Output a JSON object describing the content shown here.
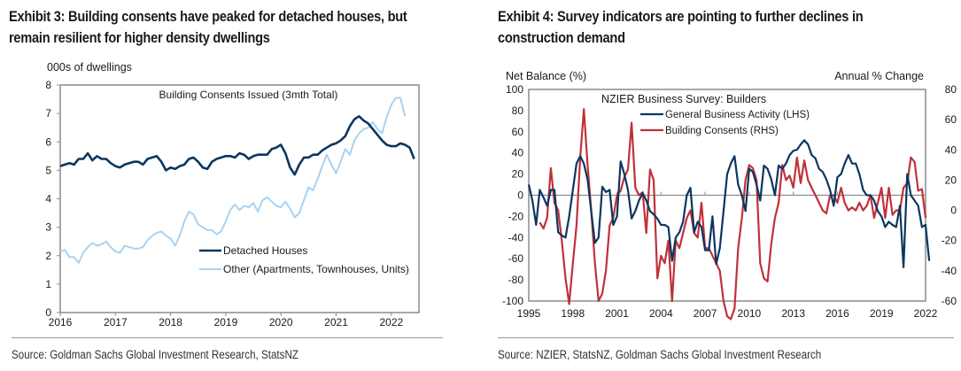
{
  "exhibit3": {
    "title_line1": "Exhibit 3: Building consents have peaked for detached houses, but",
    "title_line2": "remain resilient for higher density dwellings",
    "source": "Source: Goldman Sachs Global Investment Research, StatsNZ"
  },
  "exhibit4": {
    "title_line1": "Exhibit 4: Survey indicators are pointing to further declines in",
    "title_line2": "construction demand",
    "source": "Source: NZIER, StatsNZ, Goldman Sachs Global Investment Research"
  },
  "colors": {
    "dark_navy": "#0b3660",
    "light_blue": "#a9d2f0",
    "red": "#c0313a",
    "axis": "#8c8c8c"
  },
  "chart_data": [
    {
      "type": "line",
      "title": "Building Consents Issued (3mth Total)",
      "ylabel": "000s of dwellings",
      "xlabel": "",
      "xlim": [
        2016,
        2022.5
      ],
      "ylim": [
        0,
        8
      ],
      "yticks": [
        0,
        1,
        2,
        3,
        4,
        5,
        6,
        7,
        8
      ],
      "xticks": [
        "2016",
        "2017",
        "2018",
        "2019",
        "2020",
        "2021",
        "2022"
      ],
      "grid": false,
      "legend_position": "bottom-center",
      "x_start": 2016,
      "x_step": 0.0833,
      "series": [
        {
          "name": "Detached Houses",
          "color": "#0b3660",
          "values": [
            5.15,
            5.2,
            5.25,
            5.2,
            5.4,
            5.4,
            5.6,
            5.35,
            5.5,
            5.4,
            5.4,
            5.25,
            5.15,
            5.1,
            5.2,
            5.25,
            5.3,
            5.3,
            5.2,
            5.4,
            5.45,
            5.5,
            5.3,
            5.0,
            5.1,
            5.05,
            5.15,
            5.2,
            5.4,
            5.45,
            5.3,
            5.1,
            5.05,
            5.3,
            5.4,
            5.45,
            5.5,
            5.5,
            5.45,
            5.6,
            5.55,
            5.4,
            5.5,
            5.55,
            5.55,
            5.55,
            5.75,
            5.8,
            5.9,
            5.6,
            5.1,
            4.85,
            5.2,
            5.45,
            5.45,
            5.55,
            5.55,
            5.7,
            5.8,
            5.9,
            5.95,
            6.05,
            6.2,
            6.55,
            6.8,
            6.9,
            6.75,
            6.65,
            6.45,
            6.25,
            6.05,
            5.9,
            5.85,
            5.85,
            5.95,
            5.9,
            5.8,
            5.4
          ]
        },
        {
          "name": "Other (Apartments, Townhouses, Units)",
          "color": "#a9d2f0",
          "values": [
            2.15,
            2.2,
            1.95,
            1.95,
            1.75,
            2.1,
            2.3,
            2.45,
            2.35,
            2.4,
            2.5,
            2.3,
            2.15,
            2.1,
            2.35,
            2.3,
            2.25,
            2.25,
            2.3,
            2.55,
            2.7,
            2.8,
            2.85,
            2.7,
            2.6,
            2.35,
            2.7,
            3.2,
            3.55,
            3.45,
            3.1,
            3.0,
            2.9,
            2.9,
            2.75,
            2.85,
            3.2,
            3.6,
            3.8,
            3.6,
            3.75,
            3.7,
            3.85,
            3.55,
            3.95,
            4.05,
            3.9,
            3.75,
            3.7,
            3.9,
            3.65,
            3.35,
            3.5,
            3.95,
            4.4,
            4.3,
            4.7,
            5.15,
            5.55,
            5.2,
            4.9,
            5.3,
            5.75,
            5.55,
            6.05,
            6.3,
            6.45,
            6.5,
            6.7,
            6.45,
            6.3,
            6.85,
            7.3,
            7.55,
            7.55,
            6.9
          ]
        }
      ]
    },
    {
      "type": "line",
      "title": "NZIER Business Survey: Builders",
      "ylabel": "Net Balance (%)",
      "ylabel_right": "Annual % Change",
      "xlim": [
        1995,
        2022
      ],
      "ylim": [
        -100,
        100
      ],
      "ylim_right": [
        -60,
        80
      ],
      "yticks": [
        -100,
        -80,
        -60,
        -40,
        -20,
        0,
        20,
        40,
        60,
        80,
        100
      ],
      "yticks_right": [
        -60,
        -40,
        -20,
        0,
        20,
        40,
        60,
        80
      ],
      "xticks": [
        "1995",
        "1998",
        "2001",
        "2004",
        "2007",
        "2010",
        "2013",
        "2016",
        "2019",
        "2022"
      ],
      "grid": false,
      "legend_position": "top-center",
      "x_step": 0.25,
      "series": [
        {
          "name": "General Business Activity (LHS)",
          "axis": "left",
          "color": "#0b3660",
          "x_start": 1995,
          "values": [
            10,
            -5,
            -28,
            5,
            -2,
            -10,
            5,
            5,
            -35,
            -38,
            -40,
            -20,
            5,
            30,
            37,
            30,
            15,
            -15,
            -45,
            -40,
            8,
            3,
            5,
            -28,
            -20,
            32,
            20,
            5,
            -22,
            -15,
            -5,
            2,
            -5,
            -15,
            -18,
            -22,
            -28,
            -28,
            -30,
            -62,
            -40,
            -35,
            -25,
            0,
            7,
            -35,
            -25,
            -30,
            -52,
            -52,
            -20,
            -65,
            -50,
            -15,
            20,
            30,
            37,
            10,
            0,
            -15,
            25,
            22,
            10,
            -5,
            28,
            25,
            15,
            0,
            28,
            25,
            30,
            38,
            42,
            43,
            48,
            52,
            48,
            38,
            35,
            25,
            22,
            15,
            5,
            -10,
            17,
            20,
            30,
            38,
            30,
            30,
            20,
            5,
            0,
            0,
            -5,
            -15,
            -20,
            -30,
            -25,
            -28,
            -30,
            -10,
            -68,
            20,
            0,
            -5,
            -10,
            -30,
            -28,
            -62
          ]
        },
        {
          "name": "Building Consents (RHS)",
          "axis": "right",
          "color": "#c0313a",
          "x_start": 1995.75,
          "values": [
            -8,
            -12,
            -5,
            28,
            5,
            0,
            -20,
            -45,
            -62,
            -35,
            -10,
            35,
            67,
            30,
            0,
            -35,
            -60,
            -55,
            -40,
            -10,
            -5,
            10,
            13,
            22,
            27,
            58,
            15,
            10,
            12,
            -15,
            27,
            20,
            -45,
            -30,
            -35,
            -20,
            -60,
            -20,
            -25,
            -15,
            -5,
            0,
            -15,
            -18,
            5,
            -25,
            -25,
            -30,
            -35,
            -40,
            -60,
            -70,
            -72,
            -65,
            -25,
            -5,
            20,
            30,
            28,
            20,
            -35,
            -45,
            -47,
            -22,
            -5,
            5,
            30,
            20,
            23,
            15,
            35,
            18,
            33,
            20,
            15,
            10,
            5,
            0,
            -2,
            10,
            10,
            5,
            15,
            5,
            0,
            2,
            0,
            5,
            0,
            3,
            10,
            -5,
            5,
            15,
            -5,
            15,
            -3,
            0,
            0,
            15,
            18,
            35,
            32,
            13,
            14,
            -5
          ]
        }
      ]
    }
  ]
}
